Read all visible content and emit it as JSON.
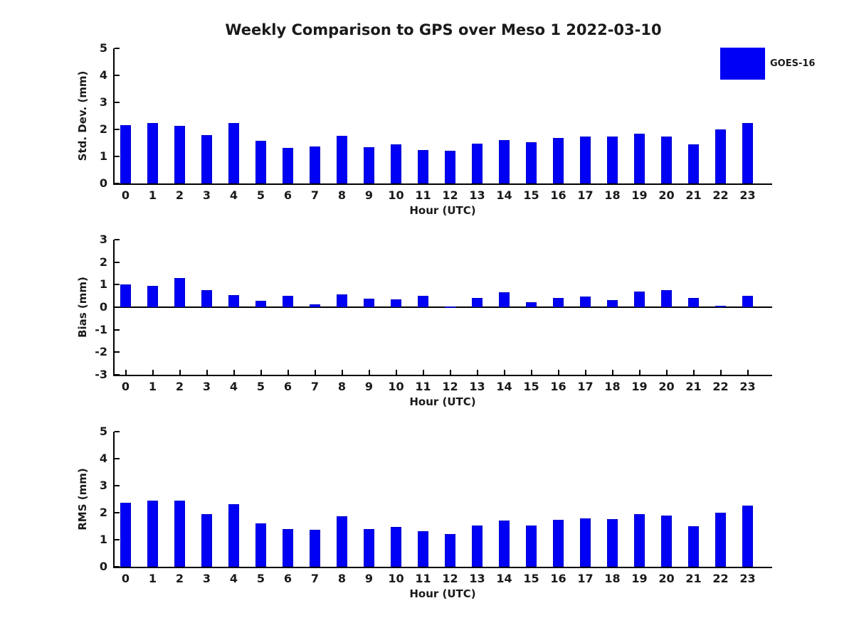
{
  "title": "Weekly Comparison to GPS over Meso 1 2022-03-10",
  "legend": {
    "label": "GOES-16"
  },
  "colors": {
    "bar_fill": "#0000f5",
    "bar_edge": "#0000cc",
    "axis": "#000000",
    "text": "#1a1a1a"
  },
  "chart_data": [
    {
      "type": "bar",
      "panel": "std_dev",
      "ylabel": "Std. Dev. (mm)",
      "xlabel": "Hour (UTC)",
      "categories": [
        0,
        1,
        2,
        3,
        4,
        5,
        6,
        7,
        8,
        9,
        10,
        11,
        12,
        13,
        14,
        15,
        16,
        17,
        18,
        19,
        20,
        21,
        22,
        23
      ],
      "values": [
        2.17,
        2.25,
        2.12,
        1.8,
        2.25,
        1.57,
        1.31,
        1.36,
        1.77,
        1.33,
        1.44,
        1.23,
        1.2,
        1.48,
        1.61,
        1.53,
        1.68,
        1.73,
        1.73,
        1.84,
        1.74,
        1.45,
        2.0,
        2.23
      ],
      "series_name": "GOES-16",
      "ylim": [
        0,
        5
      ],
      "yticks": [
        0,
        1,
        2,
        3,
        4,
        5
      ],
      "grid": false,
      "legend_position": "outside-upper-right"
    },
    {
      "type": "bar",
      "panel": "bias",
      "ylabel": "Bias (mm)",
      "xlabel": "Hour (UTC)",
      "categories": [
        0,
        1,
        2,
        3,
        4,
        5,
        6,
        7,
        8,
        9,
        10,
        11,
        12,
        13,
        14,
        15,
        16,
        17,
        18,
        19,
        20,
        21,
        22,
        23
      ],
      "values": [
        1.0,
        0.95,
        1.28,
        0.76,
        0.55,
        0.3,
        0.5,
        0.13,
        0.57,
        0.38,
        0.35,
        0.5,
        0.02,
        0.42,
        0.65,
        0.23,
        0.41,
        0.48,
        0.33,
        0.68,
        0.75,
        0.42,
        0.05,
        0.5
      ],
      "series_name": "GOES-16",
      "ylim": [
        -3,
        3
      ],
      "yticks": [
        -3,
        -2,
        -1,
        0,
        1,
        2,
        3
      ],
      "grid": false,
      "legend_position": "none"
    },
    {
      "type": "bar",
      "panel": "rms",
      "ylabel": "RMS (mm)",
      "xlabel": "Hour (UTC)",
      "categories": [
        0,
        1,
        2,
        3,
        4,
        5,
        6,
        7,
        8,
        9,
        10,
        11,
        12,
        13,
        14,
        15,
        16,
        17,
        18,
        19,
        20,
        21,
        22,
        23
      ],
      "values": [
        2.38,
        2.44,
        2.46,
        1.95,
        2.31,
        1.61,
        1.4,
        1.38,
        1.87,
        1.4,
        1.48,
        1.32,
        1.22,
        1.53,
        1.71,
        1.52,
        1.74,
        1.79,
        1.76,
        1.95,
        1.89,
        1.5,
        2.0,
        2.27
      ],
      "series_name": "GOES-16",
      "ylim": [
        0,
        5
      ],
      "yticks": [
        0,
        1,
        2,
        3,
        4,
        5
      ],
      "grid": false,
      "legend_position": "none"
    }
  ]
}
